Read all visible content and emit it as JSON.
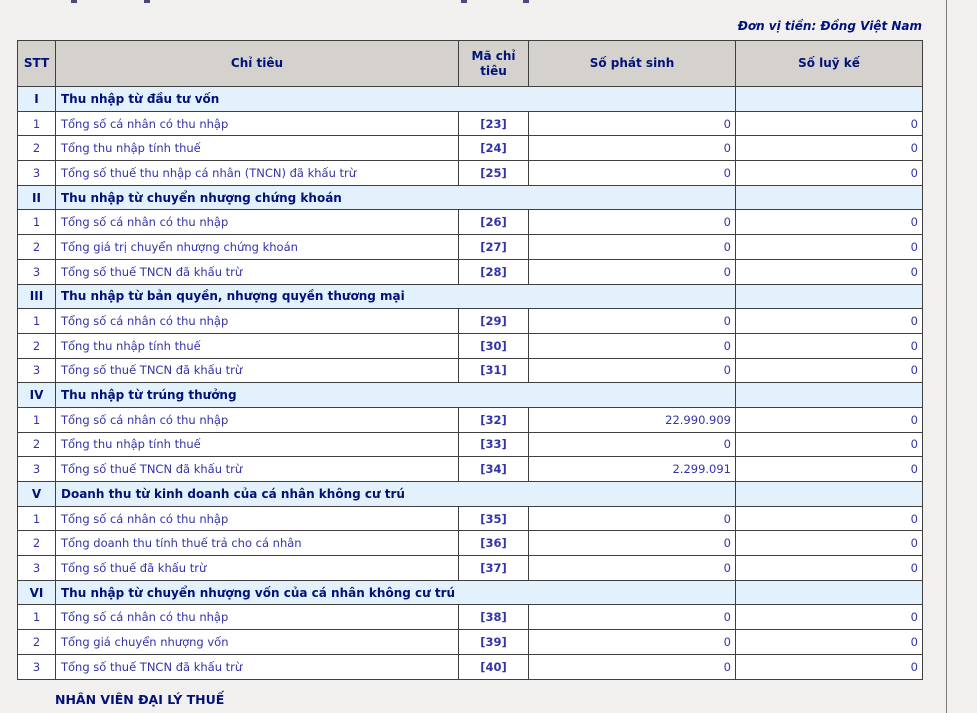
{
  "page": {
    "unit_label": "Đơn vị tiền: Đồng Việt Nam",
    "footer_label": "NHÂN VIÊN ĐẠI LÝ THUẾ"
  },
  "colors": {
    "page_bg": "#f1f0ee",
    "header_bg": "#d5d2cd",
    "section_bg": "#e3f1fc",
    "text_navy": "#001279",
    "text_blue": "#3333a8",
    "code_blue": "#22229e",
    "border": "#3f3f3f",
    "divider": "#7e7e7e"
  },
  "table": {
    "headers": {
      "stt": "STT",
      "chi_tieu": "Chỉ tiêu",
      "ma_chi_tieu": "Mã chỉ tiêu",
      "so_phat_sinh": "Số phát sinh",
      "so_luy_ke": "Số luỹ kế"
    },
    "sections": [
      {
        "numeral": "I",
        "title": "Thu nhập từ đầu tư vốn",
        "rows": [
          {
            "stt": "1",
            "label": "Tổng số cá nhân có thu nhập",
            "code": "[23]",
            "phat_sinh": "0",
            "luy_ke": "0"
          },
          {
            "stt": "2",
            "label": "Tổng thu nhập tính thuế",
            "code": "[24]",
            "phat_sinh": "0",
            "luy_ke": "0"
          },
          {
            "stt": "3",
            "label": "Tổng số thuế thu nhập cá nhân (TNCN) đã khấu trừ",
            "code": "[25]",
            "phat_sinh": "0",
            "luy_ke": "0"
          }
        ]
      },
      {
        "numeral": "II",
        "title": "Thu nhập từ chuyển nhượng chứng khoán",
        "rows": [
          {
            "stt": "1",
            "label": "Tổng số cá nhân có thu nhập",
            "code": "[26]",
            "phat_sinh": "0",
            "luy_ke": "0"
          },
          {
            "stt": "2",
            "label": "Tổng giá trị chuyển nhượng chứng khoán",
            "code": "[27]",
            "phat_sinh": "0",
            "luy_ke": "0"
          },
          {
            "stt": "3",
            "label": "Tổng số thuế TNCN đã khấu trừ",
            "code": "[28]",
            "phat_sinh": "0",
            "luy_ke": "0"
          }
        ]
      },
      {
        "numeral": "III",
        "title": "Thu nhập từ bản quyền, nhượng quyền thương mại",
        "rows": [
          {
            "stt": "1",
            "label": "Tổng số cá nhân có thu nhập",
            "code": "[29]",
            "phat_sinh": "0",
            "luy_ke": "0"
          },
          {
            "stt": "2",
            "label": "Tổng thu nhập tính thuế",
            "code": "[30]",
            "phat_sinh": "0",
            "luy_ke": "0"
          },
          {
            "stt": "3",
            "label": "Tổng số thuế TNCN đã khấu trừ",
            "code": "[31]",
            "phat_sinh": "0",
            "luy_ke": "0"
          }
        ]
      },
      {
        "numeral": "IV",
        "title": "Thu nhập từ trúng thưởng",
        "rows": [
          {
            "stt": "1",
            "label": "Tổng số cá nhân có thu nhập",
            "code": "[32]",
            "phat_sinh": "22.990.909",
            "luy_ke": "0"
          },
          {
            "stt": "2",
            "label": "Tổng thu nhập tính thuế",
            "code": "[33]",
            "phat_sinh": "0",
            "luy_ke": "0"
          },
          {
            "stt": "3",
            "label": "Tổng số thuế TNCN đã khấu trừ",
            "code": "[34]",
            "phat_sinh": "2.299.091",
            "luy_ke": "0"
          }
        ]
      },
      {
        "numeral": "V",
        "title": "Doanh thu từ kinh doanh của cá nhân không cư trú",
        "rows": [
          {
            "stt": "1",
            "label": "Tổng số cá nhân có thu nhập",
            "code": "[35]",
            "phat_sinh": "0",
            "luy_ke": "0"
          },
          {
            "stt": "2",
            "label": "Tổng doanh thu tính thuế trả cho cá nhân",
            "code": "[36]",
            "phat_sinh": "0",
            "luy_ke": "0"
          },
          {
            "stt": "3",
            "label": "Tổng số thuế đã khấu trừ",
            "code": "[37]",
            "phat_sinh": "0",
            "luy_ke": "0"
          }
        ]
      },
      {
        "numeral": "VI",
        "title": "Thu nhập từ chuyển nhượng vốn của cá nhân không cư trú",
        "rows": [
          {
            "stt": "1",
            "label": "Tổng số cá nhân có thu nhập",
            "code": "[38]",
            "phat_sinh": "0",
            "luy_ke": "0"
          },
          {
            "stt": "2",
            "label": "Tổng giá chuyển nhượng vốn",
            "code": "[39]",
            "phat_sinh": "0",
            "luy_ke": "0"
          },
          {
            "stt": "3",
            "label": "Tổng số thuế TNCN đã khấu trừ",
            "code": "[40]",
            "phat_sinh": "0",
            "luy_ke": "0"
          }
        ]
      }
    ]
  }
}
